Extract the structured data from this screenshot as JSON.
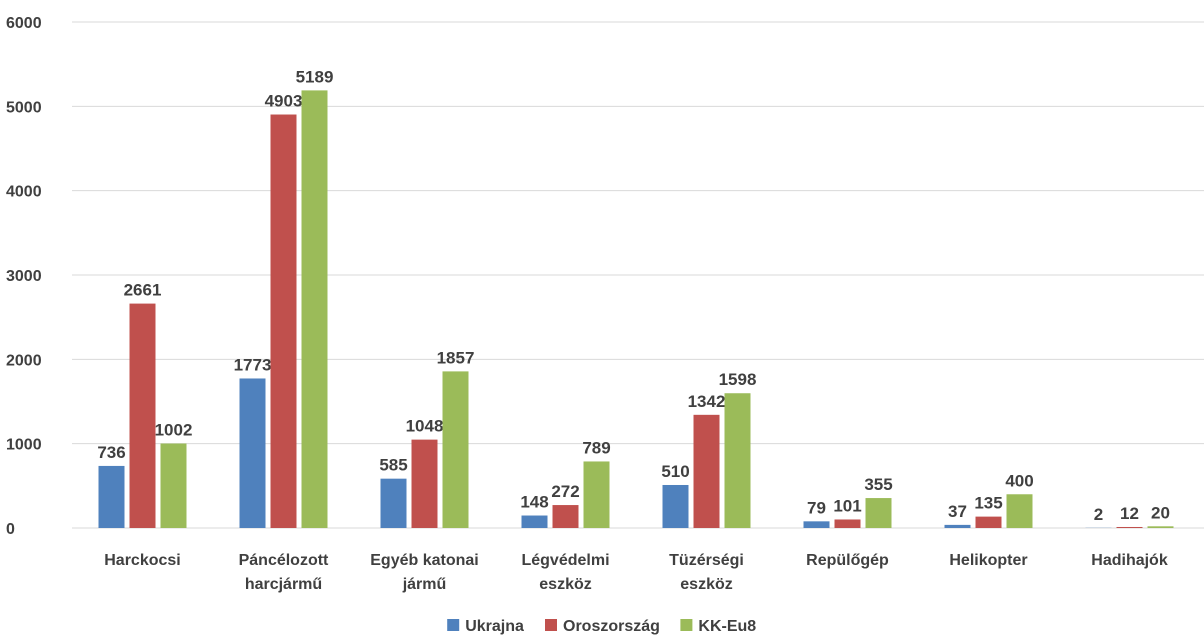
{
  "chart_data": {
    "type": "bar",
    "title": "",
    "xlabel": "",
    "ylabel": "",
    "ylim": [
      0,
      6000
    ],
    "yticks": [
      0,
      1000,
      2000,
      3000,
      4000,
      5000,
      6000
    ],
    "grid": true,
    "legend_position": "bottom",
    "categories": [
      [
        "Harckocsi"
      ],
      [
        "Páncélozott",
        "harcjármű"
      ],
      [
        "Egyéb katonai",
        "jármű"
      ],
      [
        "Légvédelmi",
        "eszköz"
      ],
      [
        "Tüzérségi",
        "eszköz"
      ],
      [
        "Repülőgép"
      ],
      [
        "Helikopter"
      ],
      [
        "Hadihajók"
      ]
    ],
    "series": [
      {
        "name": "Ukrajna",
        "color": "#4f81bd",
        "values": [
          736,
          1773,
          585,
          148,
          510,
          79,
          37,
          2
        ]
      },
      {
        "name": "Oroszország",
        "color": "#c0504d",
        "values": [
          2661,
          4903,
          1048,
          272,
          1342,
          101,
          135,
          12
        ]
      },
      {
        "name": "KK-Eu8",
        "color": "#9bbb59",
        "values": [
          1002,
          5189,
          1857,
          789,
          1598,
          355,
          400,
          20
        ]
      }
    ]
  }
}
